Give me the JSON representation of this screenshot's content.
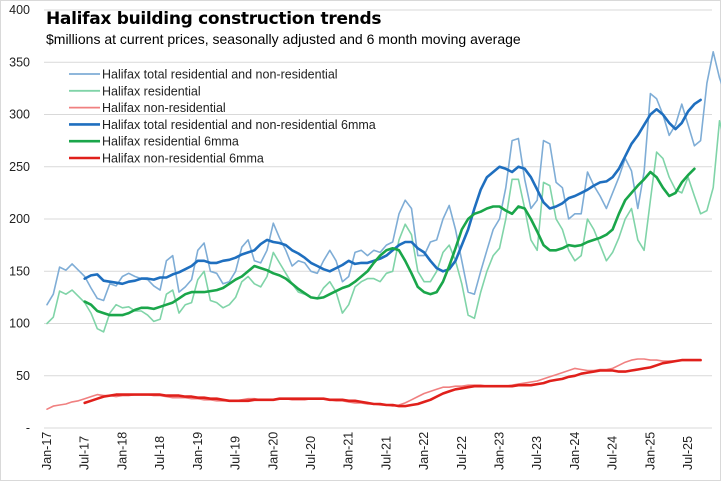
{
  "chart_data": {
    "type": "line",
    "title": "Halifax building construction trends",
    "subtitle": "$millions at current prices, seasonally adjusted and 6 month moving average",
    "xlabel": "",
    "ylabel": "",
    "ylim": [
      0,
      400
    ],
    "yticks": [
      0,
      50,
      100,
      150,
      200,
      250,
      300,
      350,
      400
    ],
    "ytick_labels": [
      "-",
      "50",
      "100",
      "150",
      "200",
      "250",
      "300",
      "350",
      "400"
    ],
    "x_start": "Jan-17",
    "x_tick_labels": [
      "Jan-17",
      "Jul-17",
      "Jan-18",
      "Jul-18",
      "Jan-19",
      "Jul-19",
      "Jan-20",
      "Jul-20",
      "Jan-21",
      "Jul-21",
      "Jan-22",
      "Jul-22",
      "Jan-23",
      "Jul-23",
      "Jan-24",
      "Jul-24",
      "Jan-25",
      "Jul-25"
    ],
    "n_months_axis": 103,
    "grid": true,
    "legend_position": "top-left",
    "series": [
      {
        "name": "Halifax total residential and non-residential",
        "color": "#7fadd6",
        "width": "thin",
        "start_index": 0,
        "values": [
          118,
          128,
          154,
          151,
          157,
          151,
          145,
          134,
          124,
          122,
          138,
          136,
          145,
          148,
          145,
          143,
          142,
          136,
          132,
          160,
          165,
          130,
          135,
          142,
          170,
          177,
          150,
          148,
          138,
          140,
          150,
          173,
          180,
          160,
          158,
          170,
          196,
          182,
          170,
          155,
          160,
          158,
          150,
          148,
          160,
          170,
          160,
          140,
          145,
          168,
          170,
          165,
          170,
          168,
          175,
          178,
          205,
          218,
          210,
          165,
          165,
          178,
          180,
          200,
          213,
          190,
          160,
          130,
          128,
          150,
          170,
          190,
          200,
          230,
          275,
          277,
          238,
          210,
          218,
          275,
          272,
          235,
          230,
          200,
          205,
          205,
          245,
          232,
          222,
          210,
          225,
          240,
          258,
          246,
          210,
          245,
          320,
          315,
          300,
          280,
          290,
          310,
          290,
          270,
          275,
          330,
          360,
          335,
          318
        ]
      },
      {
        "name": "Halifax residential",
        "color": "#80d4a8",
        "width": "thin",
        "start_index": 0,
        "values": [
          100,
          106,
          131,
          128,
          132,
          126,
          120,
          110,
          95,
          92,
          110,
          118,
          115,
          116,
          112,
          112,
          108,
          102,
          104,
          128,
          132,
          110,
          118,
          120,
          142,
          150,
          122,
          120,
          115,
          118,
          125,
          140,
          145,
          138,
          135,
          145,
          168,
          158,
          148,
          138,
          130,
          128,
          125,
          124,
          134,
          140,
          130,
          110,
          118,
          135,
          140,
          143,
          143,
          140,
          148,
          150,
          180,
          195,
          185,
          150,
          140,
          140,
          150,
          168,
          175,
          160,
          138,
          108,
          105,
          130,
          150,
          165,
          172,
          200,
          238,
          238,
          210,
          180,
          170,
          235,
          232,
          200,
          190,
          170,
          160,
          165,
          200,
          190,
          175,
          160,
          168,
          182,
          200,
          210,
          180,
          170,
          218,
          264,
          258,
          240,
          228,
          225,
          240,
          222,
          205,
          208,
          230,
          294,
          270,
          252
        ]
      },
      {
        "name": "Halifax non-residential",
        "color": "#f08080",
        "width": "thin",
        "start_index": 0,
        "values": [
          18,
          21,
          22,
          23,
          25,
          26,
          28,
          30,
          32,
          31,
          31,
          30,
          31,
          31,
          32,
          32,
          32,
          31,
          31,
          30,
          29,
          29,
          29,
          28,
          28,
          27,
          27,
          26,
          26,
          26,
          26,
          27,
          28,
          28,
          27,
          27,
          27,
          28,
          28,
          27,
          27,
          27,
          28,
          28,
          28,
          27,
          26,
          26,
          25,
          24,
          24,
          23,
          23,
          22,
          22,
          21,
          22,
          24,
          27,
          30,
          33,
          35,
          37,
          39,
          39,
          40,
          40,
          41,
          41,
          41,
          40,
          40,
          40,
          40,
          41,
          42,
          43,
          44,
          45,
          47,
          49,
          51,
          53,
          55,
          57,
          56,
          55,
          55,
          56,
          56,
          57,
          60,
          63,
          65,
          66,
          66,
          65,
          65,
          64,
          64,
          64
        ]
      },
      {
        "name": "Halifax total residential and non-residential 6mma",
        "color": "#1f6fbf",
        "width": "thick",
        "start_index": 6,
        "values": [
          143,
          146,
          147,
          141,
          140,
          139,
          138,
          140,
          141,
          143,
          143,
          142,
          144,
          144,
          147,
          149,
          152,
          155,
          160,
          160,
          158,
          158,
          160,
          161,
          163,
          166,
          168,
          170,
          176,
          180,
          178,
          177,
          175,
          170,
          167,
          163,
          158,
          155,
          152,
          150,
          153,
          156,
          160,
          157,
          158,
          158,
          160,
          162,
          165,
          170,
          175,
          178,
          178,
          172,
          168,
          160,
          153,
          150,
          152,
          160,
          175,
          190,
          210,
          228,
          240,
          245,
          250,
          248,
          245,
          250,
          248,
          240,
          228,
          216,
          210,
          212,
          215,
          220,
          222,
          225,
          228,
          232,
          235,
          236,
          240,
          248,
          260,
          272,
          280,
          290,
          300,
          305,
          300,
          292,
          286,
          292,
          303,
          310,
          314
        ]
      },
      {
        "name": "Halifax residential 6mma",
        "color": "#1aa64a",
        "width": "thick",
        "start_index": 6,
        "values": [
          121,
          118,
          112,
          110,
          108,
          108,
          108,
          110,
          113,
          115,
          115,
          114,
          116,
          118,
          120,
          124,
          128,
          130,
          130,
          130,
          131,
          132,
          134,
          138,
          142,
          145,
          150,
          155,
          153,
          151,
          148,
          146,
          143,
          138,
          133,
          129,
          125,
          124,
          125,
          128,
          131,
          134,
          136,
          140,
          145,
          150,
          158,
          165,
          170,
          172,
          170,
          160,
          148,
          135,
          130,
          128,
          130,
          140,
          155,
          172,
          190,
          200,
          205,
          207,
          210,
          212,
          212,
          208,
          205,
          212,
          210,
          200,
          188,
          175,
          170,
          170,
          172,
          175,
          174,
          175,
          178,
          180,
          182,
          185,
          190,
          205,
          218,
          225,
          232,
          238,
          245,
          240,
          230,
          222,
          225,
          235,
          242,
          248
        ]
      },
      {
        "name": "Halifax non-residential 6mma",
        "color": "#e0201b",
        "width": "thick",
        "start_index": 6,
        "values": [
          24,
          26,
          28,
          30,
          31,
          32,
          32,
          32,
          32,
          32,
          32,
          32,
          32,
          31,
          31,
          31,
          30,
          30,
          29,
          29,
          28,
          28,
          27,
          26,
          26,
          26,
          26,
          27,
          27,
          27,
          27,
          28,
          28,
          28,
          28,
          28,
          28,
          28,
          28,
          27,
          27,
          27,
          26,
          26,
          25,
          24,
          23,
          23,
          22,
          22,
          21,
          21,
          22,
          23,
          25,
          27,
          30,
          33,
          35,
          37,
          38,
          39,
          40,
          40,
          40,
          40,
          40,
          40,
          40,
          41,
          41,
          41,
          42,
          43,
          45,
          46,
          47,
          49,
          50,
          52,
          53,
          54,
          55,
          55,
          55,
          54,
          54,
          55,
          56,
          57,
          58,
          60,
          62,
          63,
          64,
          65,
          65,
          65,
          65
        ]
      }
    ]
  }
}
